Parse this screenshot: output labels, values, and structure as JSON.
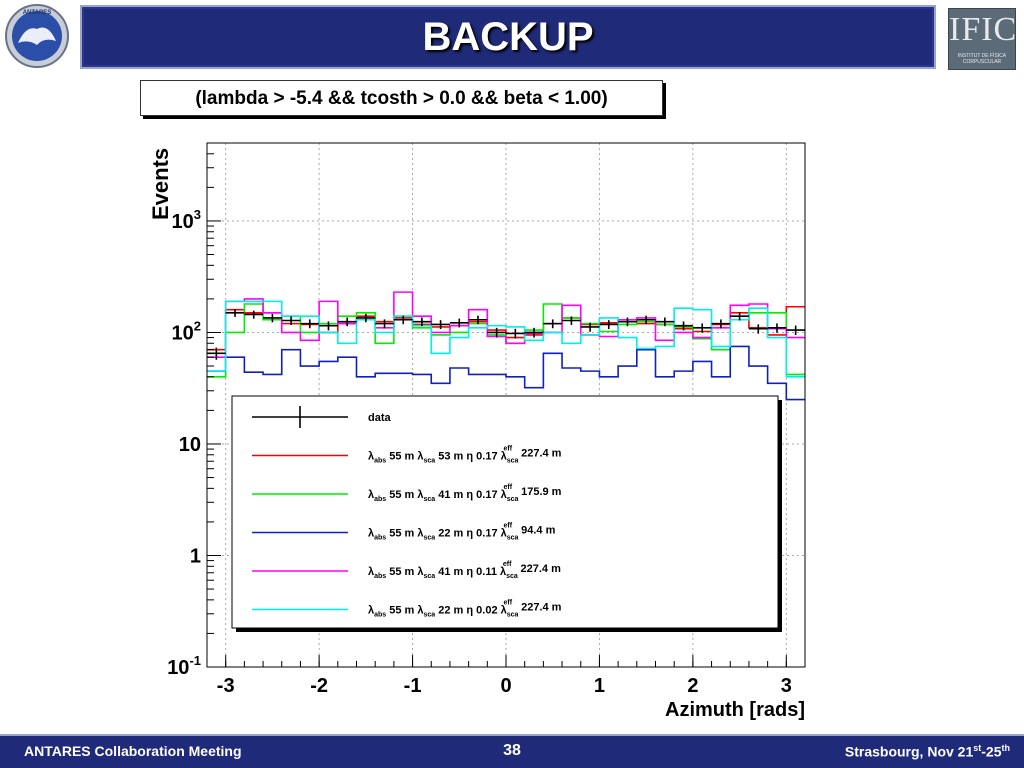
{
  "slide": {
    "title": "BACKUP",
    "cut_label": "(lambda > -5.4 && tcosth > 0.0 && beta < 1.00)",
    "logo_left": "ANTARES",
    "logo_right": "IFIC",
    "logo_right_sub": "INSTITUT DE FÍSICA CORPUSCULAR"
  },
  "footer": {
    "left": "ANTARES Collaboration Meeting",
    "page": "38",
    "right_prefix": "Strasbourg, Nov 21",
    "right_sup1": "st",
    "right_mid": "-25",
    "right_sup2": "th"
  },
  "chart_data": {
    "type": "line",
    "xlabel": "Azimuth [rads]",
    "ylabel": "Events",
    "xlim": [
      -3.2,
      3.2
    ],
    "ylim": [
      0.1,
      5000
    ],
    "log_y": true,
    "grid": true,
    "x_ticks": [
      "-3",
      "-2",
      "-1",
      "0",
      "1",
      "2",
      "3"
    ],
    "y_ticks": [
      "10-1",
      "1",
      "10",
      "102",
      "103"
    ],
    "legend_position": "lower-center",
    "legend": [
      {
        "label": "data",
        "style": "errorbar",
        "color": "#000000"
      },
      {
        "label": "λabs 55 m λsca 53 m η 0.17 λsca^eff 227.4 m",
        "abs": "55 m",
        "sca": "53 m",
        "eta": "0.17",
        "eff": "227.4 m",
        "color": "#ff0000"
      },
      {
        "label": "λabs 55 m λsca 41 m η 0.17 λsca^eff 175.9 m",
        "abs": "55 m",
        "sca": "41 m",
        "eta": "0.17",
        "eff": "175.9 m",
        "color": "#00ee00"
      },
      {
        "label": "λabs 55 m λsca 22 m η 0.17 λsca^eff 94.4 m",
        "abs": "55 m",
        "sca": "22 m",
        "eta": "0.17",
        "eff": "94.4 m",
        "color": "#1020c0"
      },
      {
        "label": "λabs 55 m λsca 41 m η 0.11 λsca^eff 227.4 m",
        "abs": "55 m",
        "sca": "41 m",
        "eta": "0.11",
        "eff": "227.4 m",
        "color": "#ff00ff"
      },
      {
        "label": "λabs 55 m λsca 22 m η 0.02 λsca^eff 227.4 m",
        "abs": "55 m",
        "sca": "22 m",
        "eta": "0.02",
        "eff": "227.4 m",
        "color": "#00eeee"
      }
    ],
    "bin_edges": [
      -3.2,
      -3.0,
      -2.8,
      -2.6,
      -2.4,
      -2.2,
      -2.0,
      -1.8,
      -1.6,
      -1.4,
      -1.2,
      -1.0,
      -0.8,
      -0.6,
      -0.4,
      -0.2,
      0.0,
      0.2,
      0.4,
      0.6,
      0.8,
      1.0,
      1.2,
      1.4,
      1.6,
      1.8,
      2.0,
      2.2,
      2.4,
      2.6,
      2.8,
      3.0,
      3.2
    ],
    "series": [
      {
        "name": "data",
        "color": "#000000",
        "errorbar": true,
        "values": [
          65,
          150,
          145,
          135,
          128,
          120,
          115,
          125,
          135,
          120,
          130,
          125,
          118,
          122,
          130,
          100,
          98,
          100,
          120,
          128,
          112,
          118,
          125,
          130,
          125,
          115,
          110,
          120,
          140,
          108,
          110,
          105
        ]
      },
      {
        "name": "red",
        "color": "#ff0000",
        "values": [
          70,
          160,
          150,
          150,
          120,
          118,
          100,
          120,
          140,
          125,
          135,
          118,
          112,
          115,
          125,
          105,
          90,
          95,
          120,
          135,
          118,
          122,
          130,
          120,
          118,
          108,
          102,
          118,
          150,
          110,
          95,
          170
        ]
      },
      {
        "name": "green",
        "color": "#00ee00",
        "values": [
          40,
          100,
          180,
          130,
          140,
          100,
          120,
          140,
          150,
          80,
          140,
          110,
          95,
          100,
          120,
          95,
          80,
          105,
          180,
          135,
          120,
          102,
          118,
          125,
          118,
          112,
          88,
          70,
          130,
          150,
          150,
          42
        ]
      },
      {
        "name": "blue",
        "color": "#1020c0",
        "values": [
          45,
          60,
          44,
          42,
          70,
          50,
          55,
          60,
          40,
          43,
          43,
          42,
          35,
          48,
          42,
          42,
          40,
          32,
          65,
          48,
          45,
          40,
          50,
          70,
          40,
          45,
          55,
          40,
          75,
          50,
          35,
          25
        ]
      },
      {
        "name": "magenta",
        "color": "#ff00ff",
        "values": [
          60,
          190,
          200,
          150,
          100,
          85,
          190,
          120,
          130,
          110,
          230,
          140,
          100,
          115,
          160,
          92,
          80,
          98,
          100,
          175,
          95,
          92,
          130,
          135,
          85,
          100,
          90,
          110,
          175,
          180,
          108,
          90
        ]
      },
      {
        "name": "cyan",
        "color": "#00eeee",
        "values": [
          45,
          190,
          190,
          190,
          140,
          140,
          100,
          80,
          130,
          100,
          140,
          115,
          65,
          90,
          110,
          115,
          112,
          85,
          100,
          80,
          95,
          135,
          90,
          72,
          75,
          165,
          160,
          75,
          130,
          165,
          90,
          40
        ]
      }
    ]
  }
}
